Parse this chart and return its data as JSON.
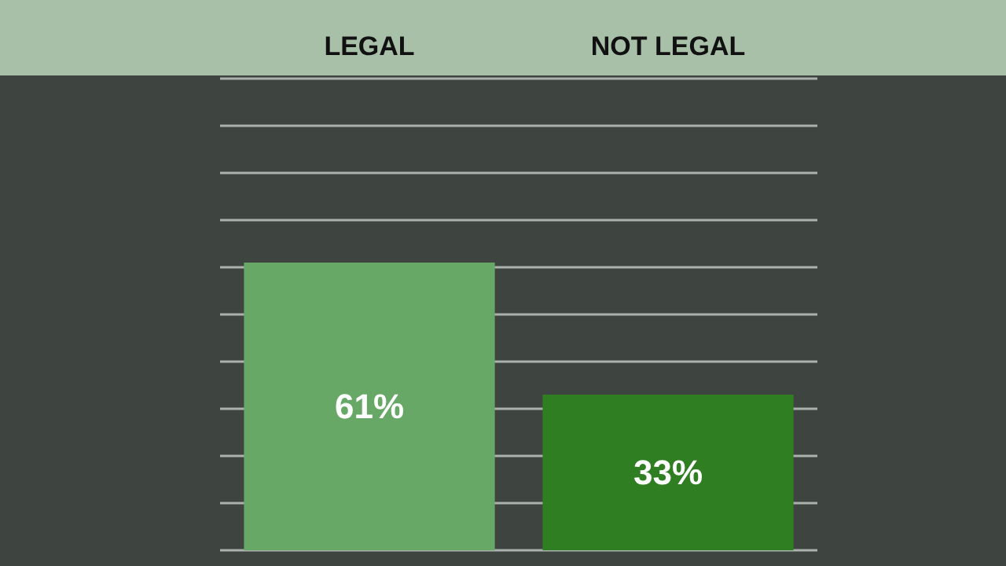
{
  "chart_data": {
    "type": "bar",
    "categories": [
      "LEGAL",
      "NOT LEGAL"
    ],
    "values": [
      61,
      33
    ],
    "colors": [
      "#67a867",
      "#2f7f22"
    ],
    "value_labels": [
      "61%",
      "33%"
    ],
    "ylim": [
      0,
      100
    ],
    "yticks": [
      {
        "value": 0,
        "label": null
      },
      {
        "value": 10,
        "label": null
      },
      {
        "value": 20,
        "label": null
      },
      {
        "value": 30,
        "label": null
      },
      {
        "value": 40,
        "label": null
      },
      {
        "value": 50,
        "label": null
      },
      {
        "value": 60,
        "label": null
      },
      {
        "value": 70,
        "label": null
      },
      {
        "value": 80,
        "label": null
      },
      {
        "value": 90,
        "label": null
      },
      {
        "value": 100,
        "label": null
      }
    ],
    "grid": "y",
    "tick_labels": "x"
  }
}
